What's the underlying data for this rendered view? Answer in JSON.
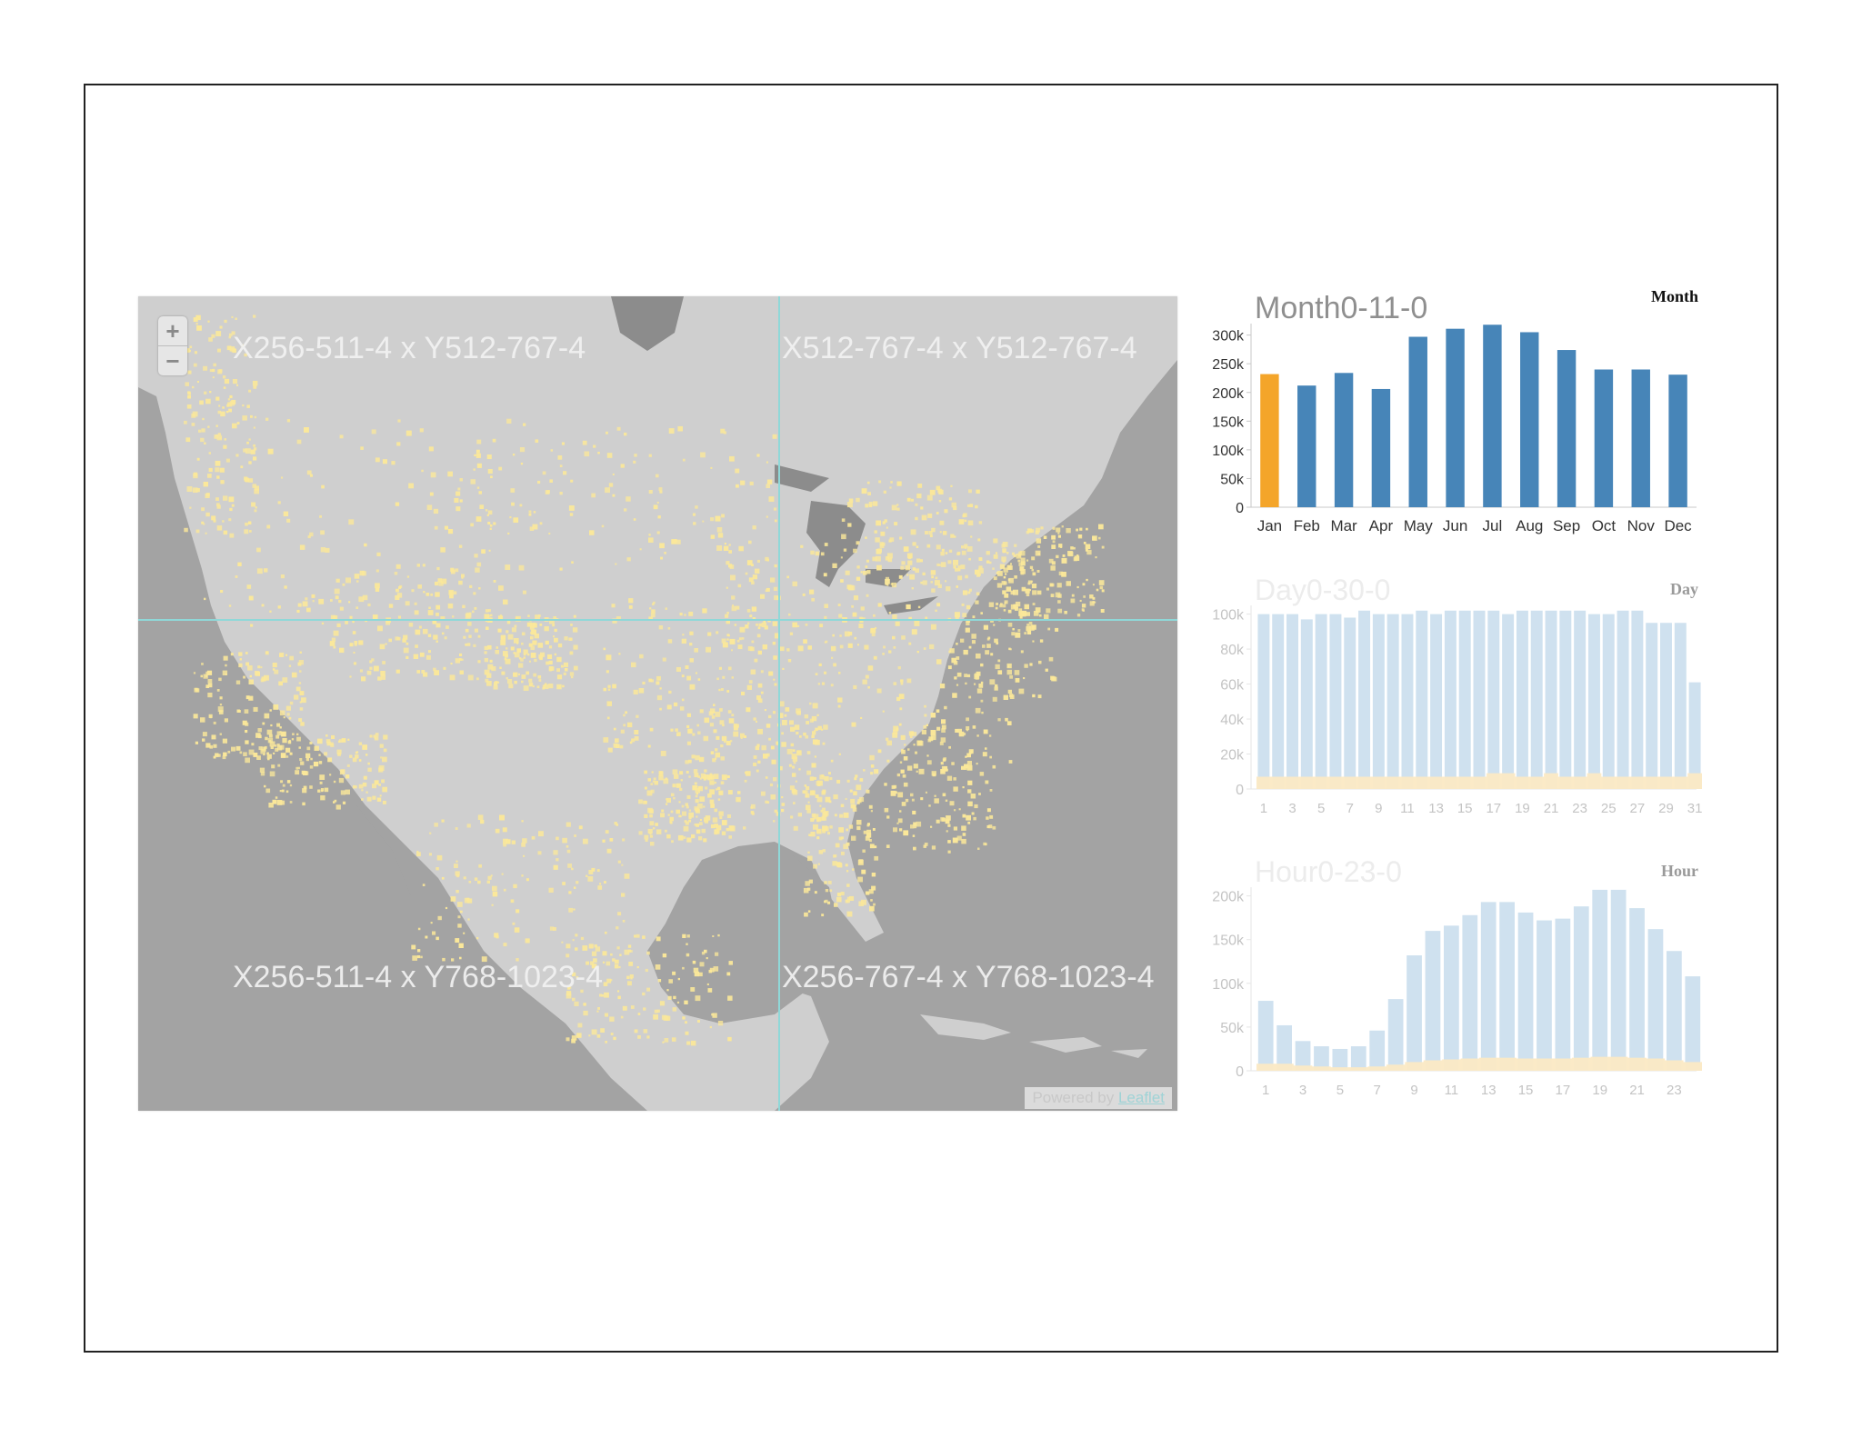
{
  "map": {
    "zoom_in_label": "+",
    "zoom_out_label": "−",
    "tiles": [
      "X256-511-4 x Y512-767-4",
      "X512-767-4 x Y512-767-4",
      "X256-511-4 x Y768-1023-4",
      "X256-767-4 x Y768-1023-4"
    ],
    "attribution_prefix": "Powered by ",
    "attribution_link": "Leaflet",
    "colors": {
      "ocean": "#a3a3a3",
      "land": "#cfcfcf",
      "points": "#fbe89a",
      "grid": "#8fd8d8"
    }
  },
  "charts": [
    {
      "chart_data": {
        "type": "bar",
        "title": "Month0-11-0",
        "label": "Month",
        "categories": [
          "Jan",
          "Feb",
          "Mar",
          "Apr",
          "May",
          "Jun",
          "Jul",
          "Aug",
          "Sep",
          "Oct",
          "Nov",
          "Dec"
        ],
        "values": [
          232000,
          212000,
          234000,
          206000,
          297000,
          311000,
          318000,
          305000,
          274000,
          240000,
          240000,
          231000
        ],
        "selected_index": 0,
        "ylim": [
          0,
          320000
        ],
        "yticks": [
          0,
          50000,
          100000,
          150000,
          200000,
          250000,
          300000
        ],
        "ytick_labels": [
          "0",
          "50k",
          "100k",
          "150k",
          "200k",
          "250k",
          "300k"
        ],
        "colors": {
          "bar": "#4785b8",
          "selected": "#f4a52a"
        }
      }
    },
    {
      "chart_data": {
        "type": "bar",
        "title": "Day0-30-0",
        "label": "Day",
        "categories": [
          "1",
          "2",
          "3",
          "4",
          "5",
          "6",
          "7",
          "8",
          "9",
          "10",
          "11",
          "12",
          "13",
          "14",
          "15",
          "16",
          "17",
          "18",
          "19",
          "20",
          "21",
          "22",
          "23",
          "24",
          "25",
          "26",
          "27",
          "28",
          "29",
          "30",
          "31"
        ],
        "x_tick_labels": [
          "1",
          "",
          "3",
          "",
          "5",
          "",
          "7",
          "",
          "9",
          "",
          "11",
          "",
          "13",
          "",
          "15",
          "",
          "17",
          "",
          "19",
          "",
          "21",
          "",
          "23",
          "",
          "25",
          "",
          "27",
          "",
          "29",
          "",
          "31"
        ],
        "series": [
          {
            "name": "",
            "values": [
              100000,
              100000,
              100000,
              97000,
              100000,
              100000,
              98000,
              102000,
              100000,
              100000,
              100000,
              102000,
              100000,
              102000,
              102000,
              102000,
              102000,
              100000,
              102000,
              102000,
              102000,
              102000,
              102000,
              100000,
              100000,
              102000,
              102000,
              95000,
              95000,
              95000,
              61000
            ]
          },
          {
            "name": "",
            "values": [
              7000,
              7000,
              7000,
              7000,
              7000,
              7000,
              7000,
              7000,
              7000,
              7000,
              7000,
              7000,
              7000,
              7000,
              7000,
              7000,
              9000,
              9000,
              7000,
              7000,
              9000,
              7000,
              7000,
              9000,
              7000,
              7000,
              7000,
              7000,
              7000,
              7000,
              9000
            ]
          }
        ],
        "ylim": [
          0,
          105000
        ],
        "yticks": [
          0,
          20000,
          40000,
          60000,
          80000,
          100000
        ],
        "ytick_labels": [
          "0",
          "20k",
          "40k",
          "60k",
          "80k",
          "100k"
        ],
        "colors": {
          "bar": "#cfe1ef",
          "overlay": "#fbe9c4"
        }
      }
    },
    {
      "chart_data": {
        "type": "bar",
        "title": "Hour0-23-0",
        "label": "Hour",
        "categories": [
          "1",
          "2",
          "3",
          "4",
          "5",
          "6",
          "7",
          "8",
          "9",
          "10",
          "11",
          "12",
          "13",
          "14",
          "15",
          "16",
          "17",
          "18",
          "19",
          "20",
          "21",
          "22",
          "23",
          "24"
        ],
        "x_tick_labels": [
          "1",
          "",
          "3",
          "",
          "5",
          "",
          "7",
          "",
          "9",
          "",
          "11",
          "",
          "13",
          "",
          "15",
          "",
          "17",
          "",
          "19",
          "",
          "21",
          "",
          "23",
          ""
        ],
        "series": [
          {
            "name": "",
            "values": [
              80000,
              52000,
              34000,
              28000,
              25000,
              28000,
              46000,
              82000,
              132000,
              160000,
              166000,
              178000,
              193000,
              193000,
              181000,
              172000,
              174000,
              188000,
              207000,
              207000,
              186000,
              162000,
              137000,
              108000
            ]
          },
          {
            "name": "",
            "values": [
              8000,
              8000,
              6000,
              5000,
              4000,
              4000,
              5000,
              7000,
              10000,
              12000,
              13000,
              14000,
              15000,
              15000,
              14000,
              14000,
              14000,
              15000,
              16000,
              16000,
              15000,
              14000,
              12000,
              10000
            ]
          }
        ],
        "ylim": [
          0,
          210000
        ],
        "yticks": [
          0,
          50000,
          100000,
          150000,
          200000
        ],
        "ytick_labels": [
          "0",
          "50k",
          "100k",
          "150k",
          "200k"
        ],
        "colors": {
          "bar": "#cfe1ef",
          "overlay": "#fbe9c4"
        }
      }
    }
  ]
}
